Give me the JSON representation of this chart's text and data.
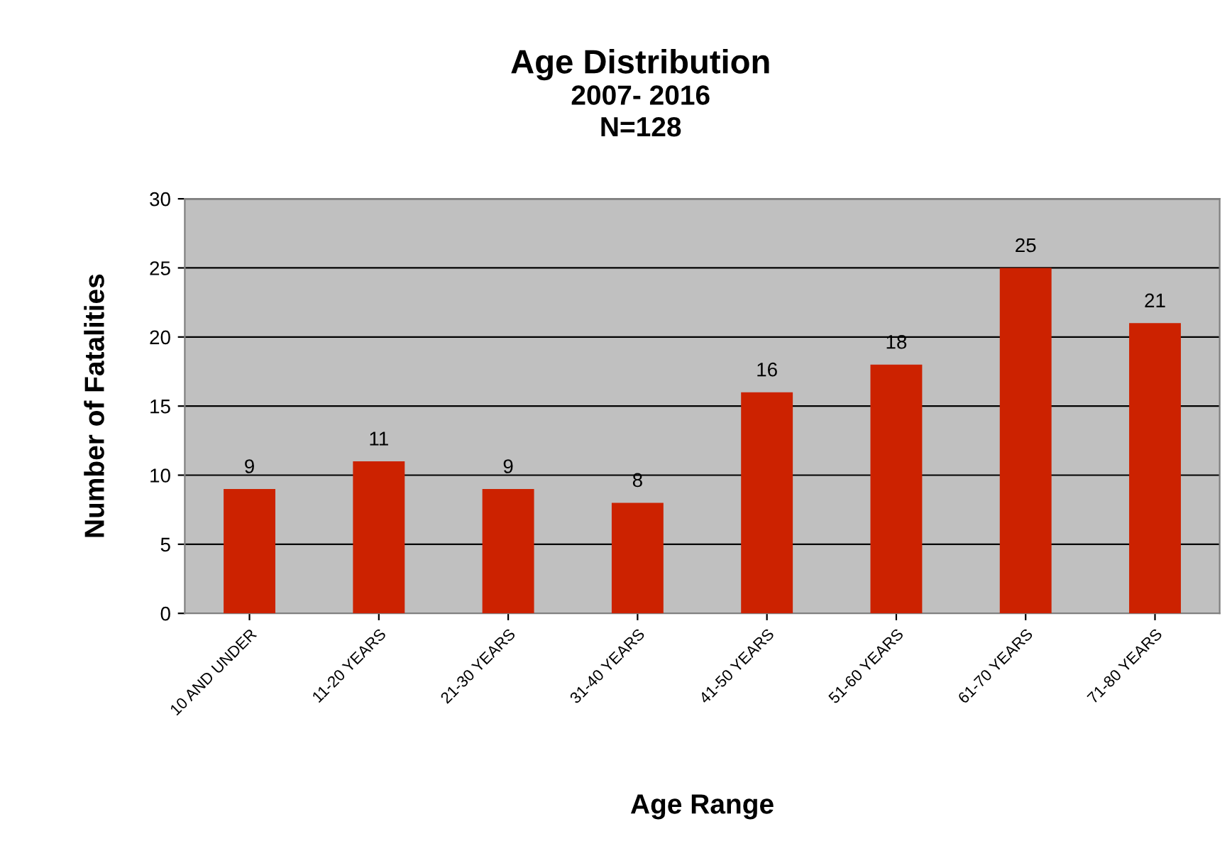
{
  "chart_data": {
    "type": "bar",
    "title": "Age Distribution",
    "subtitle": "2007- 2016\nN=128",
    "xlabel": "Age Range",
    "ylabel": "Number of Fatalities",
    "categories": [
      "10 AND UNDER",
      "11-20 YEARS",
      "21-30 YEARS",
      "31-40 YEARS",
      "41-50 YEARS",
      "51-60 YEARS",
      "61-70 YEARS",
      "71-80 YEARS"
    ],
    "values": [
      9,
      11,
      9,
      8,
      16,
      18,
      25,
      21
    ],
    "color": "#cc2200",
    "ylim": [
      0,
      30
    ],
    "yticks": [
      0,
      5,
      10,
      15,
      20,
      25,
      30
    ],
    "grid": "y",
    "data_labels": true,
    "legend": false
  }
}
